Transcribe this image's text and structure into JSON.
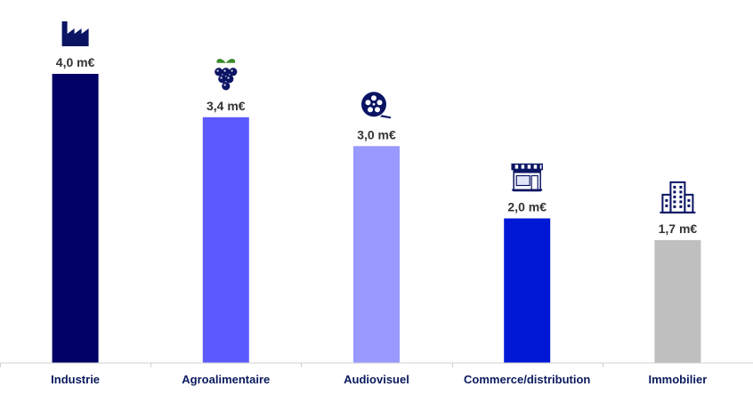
{
  "chart_data": {
    "type": "bar",
    "title": "",
    "xlabel": "",
    "ylabel": "",
    "categories": [
      "Industrie",
      "Agroalimentaire",
      "Audiovisuel",
      "Commerce/distribution",
      "Immobilier"
    ],
    "values": [
      4.0,
      3.4,
      3.0,
      2.0,
      1.7
    ],
    "value_labels": [
      "4,0 m€",
      "3,4 m€",
      "3,0 m€",
      "2,0 m€",
      "1,7 m€"
    ],
    "unit": "m€",
    "ylim": [
      0,
      4.0
    ],
    "grid": false,
    "legend": "none",
    "colors": [
      "#000066",
      "#5a5aff",
      "#9999ff",
      "#0018d6",
      "#bfbfbf"
    ],
    "icons": [
      "factory-icon",
      "grapes-icon",
      "film-reel-icon",
      "storefront-icon",
      "office-building-icon"
    ]
  }
}
